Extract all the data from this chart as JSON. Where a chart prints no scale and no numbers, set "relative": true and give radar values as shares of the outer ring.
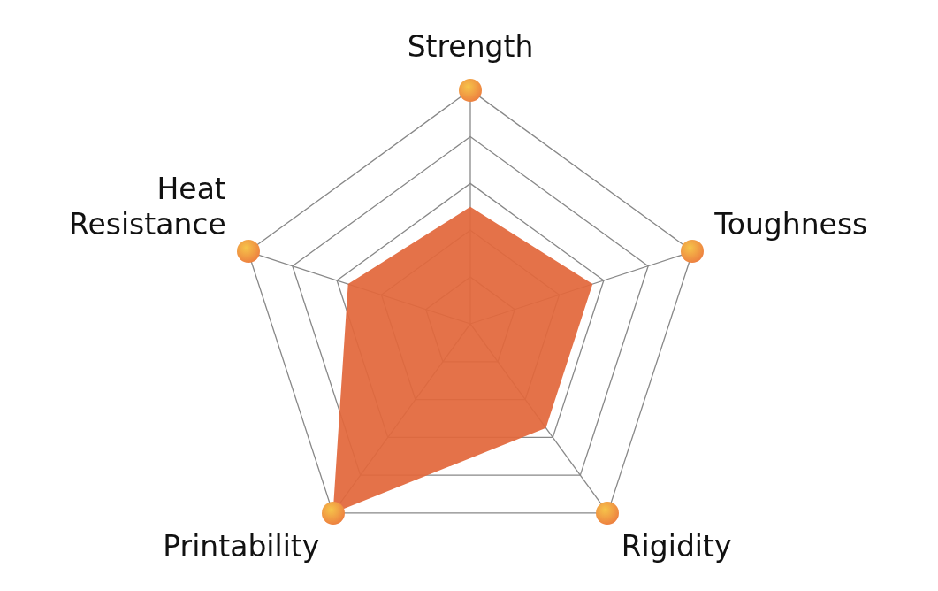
{
  "chart_data": {
    "type": "radar",
    "relative": true,
    "grid": true,
    "legend": false,
    "marker": "none",
    "categories": [
      "Strength",
      "Toughness",
      "Rigidity",
      "Printability",
      "Heat\nResistance"
    ],
    "series": [
      {
        "color": "#e2683c",
        "values": [
          0.5,
          0.55,
          0.55,
          1,
          0.55
        ]
      }
    ]
  }
}
